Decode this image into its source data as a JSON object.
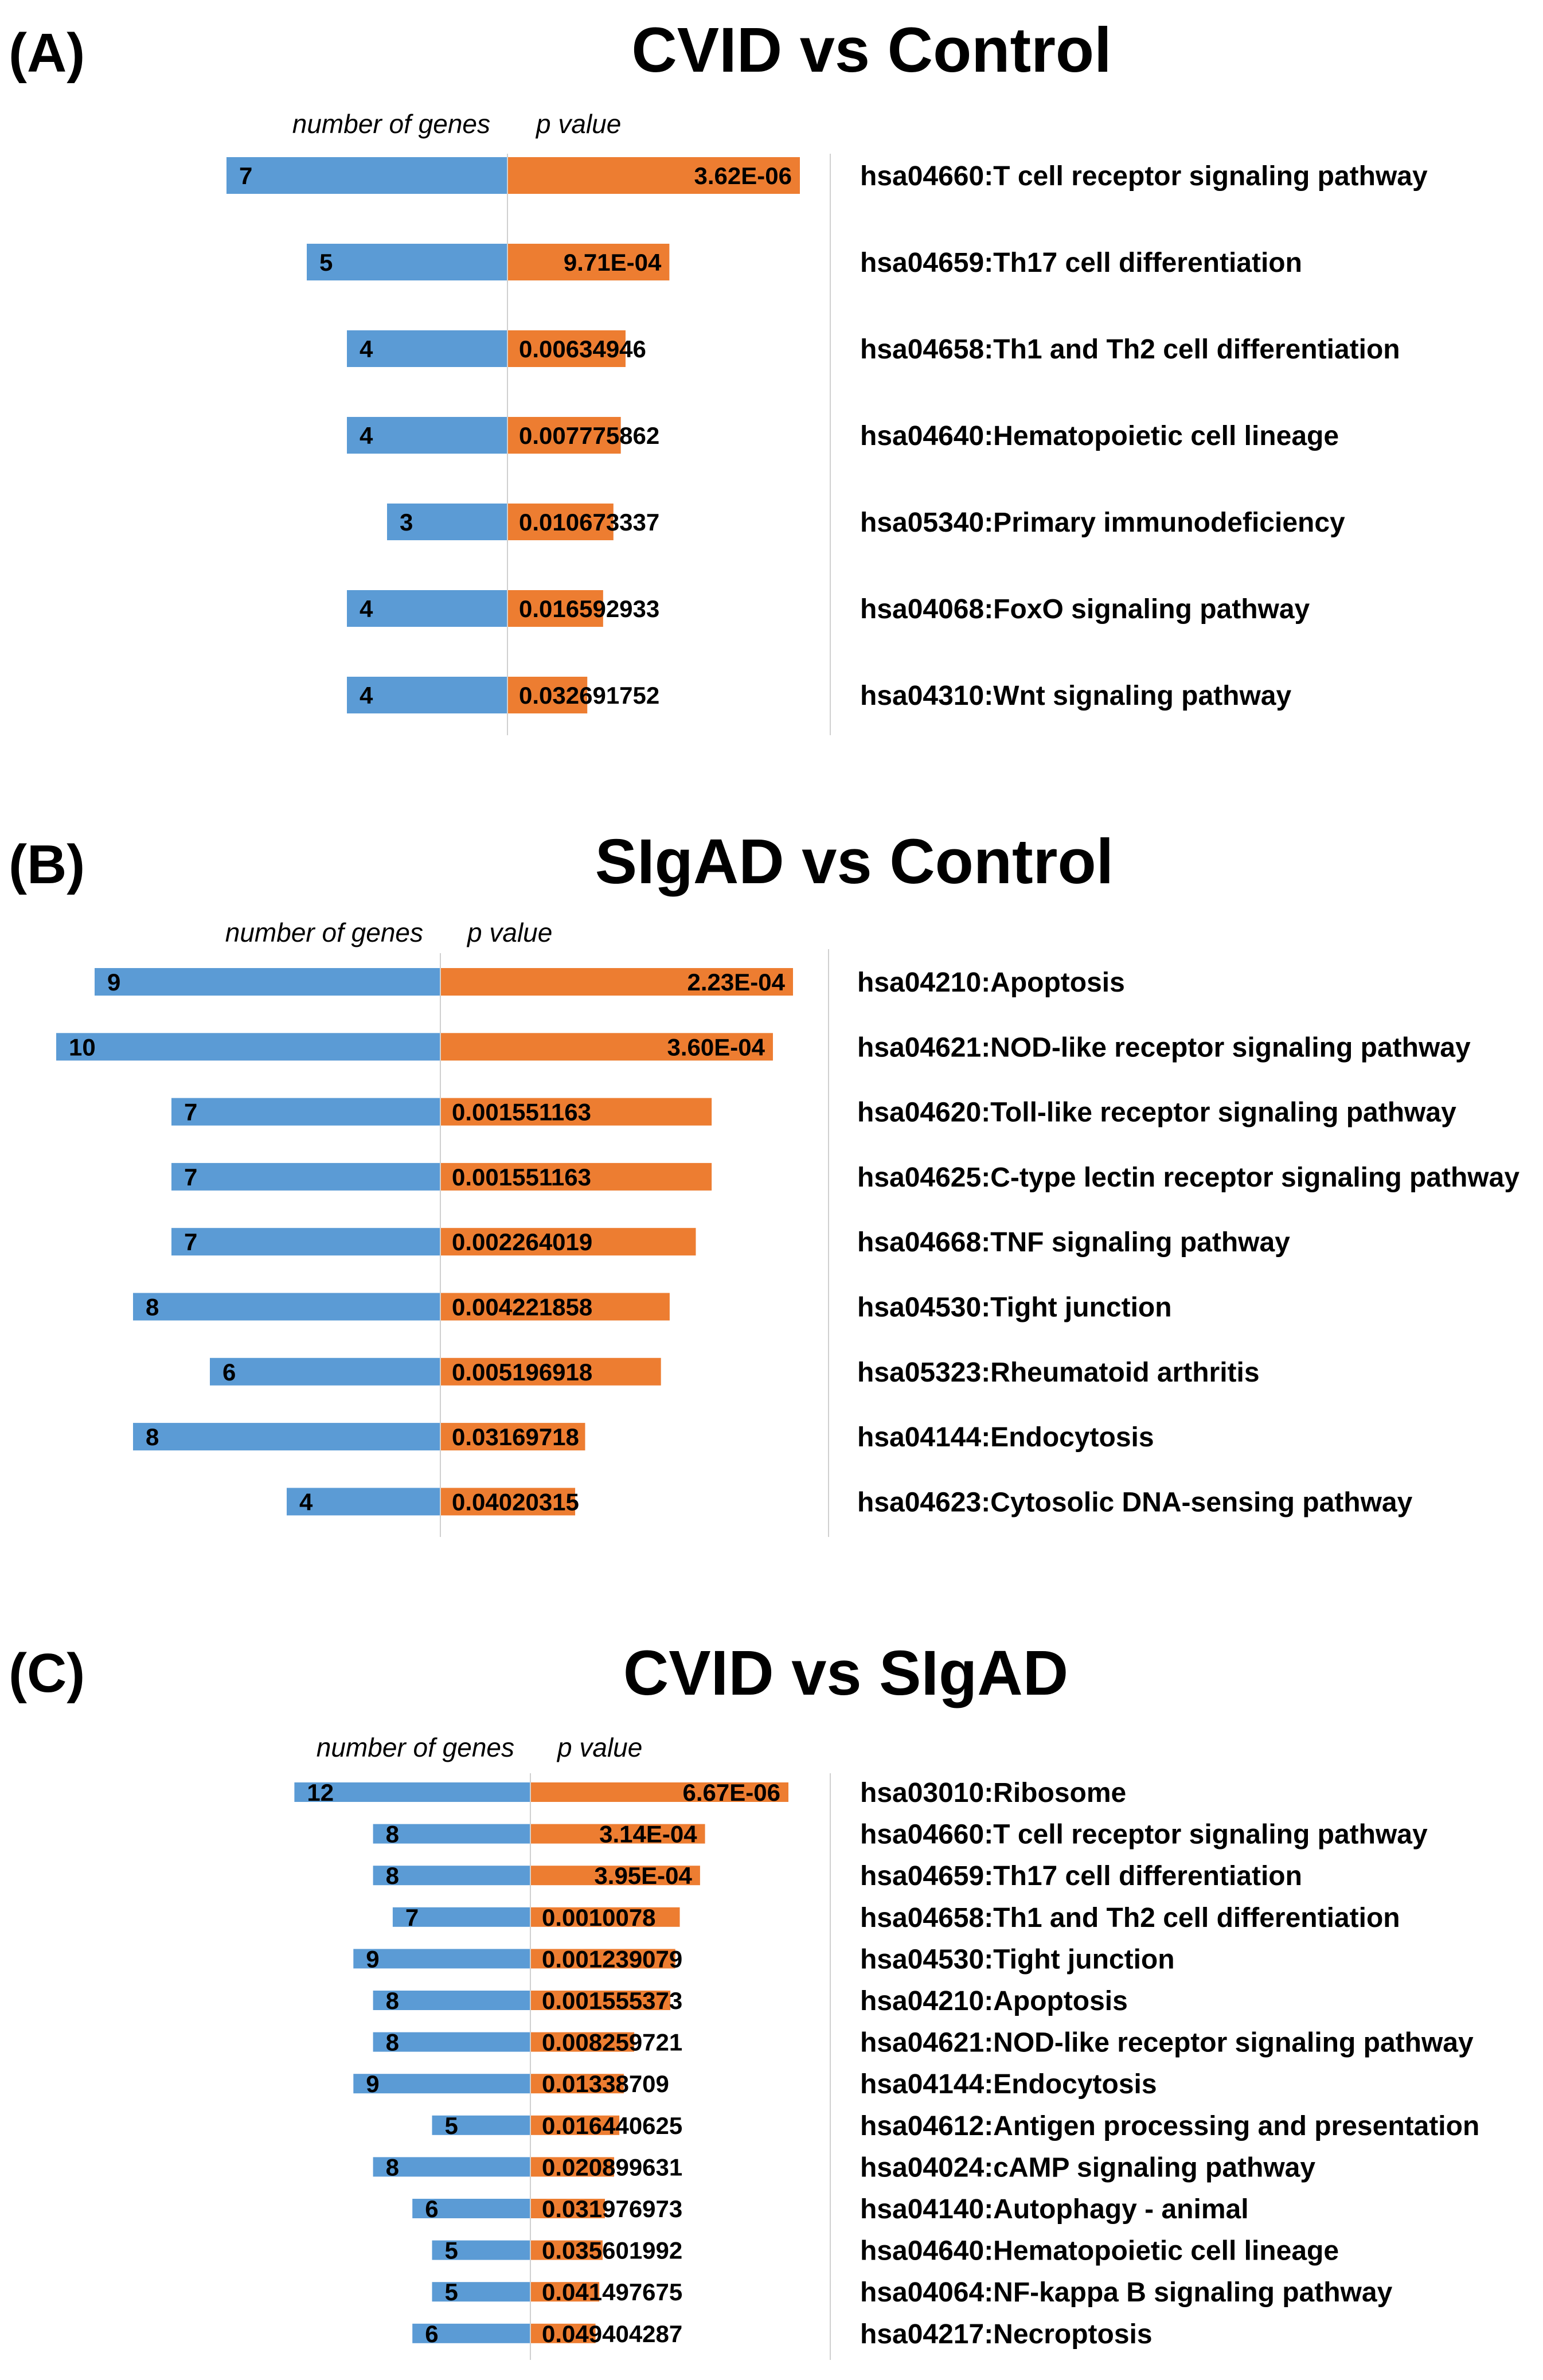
{
  "chart_data": [
    {
      "type": "bar",
      "panel_label": "(A)",
      "title": "CVID vs Control",
      "left_header": "number of genes",
      "right_header": "p value",
      "colors": {
        "genes": "#5b9bd5",
        "pvalue": "#ed7d31"
      },
      "rows": [
        {
          "pathway": "hsa04660:T cell receptor signaling pathway",
          "genes": 7,
          "p_label": "3.62E-06",
          "p": 3.62e-06
        },
        {
          "pathway": "hsa04659:Th17 cell differentiation",
          "genes": 5,
          "p_label": "9.71E-04",
          "p": 0.000971
        },
        {
          "pathway": "hsa04658:Th1 and Th2 cell differentiation",
          "genes": 4,
          "p_label": "0.00634946",
          "p": 0.00634946
        },
        {
          "pathway": "hsa04640:Hematopoietic cell lineage",
          "genes": 4,
          "p_label": "0.007775862",
          "p": 0.007775862
        },
        {
          "pathway": "hsa05340:Primary immunodeficiency",
          "genes": 3,
          "p_label": "0.010673337",
          "p": 0.010673337
        },
        {
          "pathway": "hsa04068:FoxO signaling pathway",
          "genes": 4,
          "p_label": "0.016592933",
          "p": 0.016592933
        },
        {
          "pathway": "hsa04310:Wnt signaling pathway",
          "genes": 4,
          "p_label": "0.032691752",
          "p": 0.032691752
        }
      ]
    },
    {
      "type": "bar",
      "panel_label": "(B)",
      "title": "SIgAD vs Control",
      "left_header": "number of genes",
      "right_header": "p value",
      "colors": {
        "genes": "#5b9bd5",
        "pvalue": "#ed7d31"
      },
      "rows": [
        {
          "pathway": "hsa04210:Apoptosis",
          "genes": 9,
          "p_label": "2.23E-04",
          "p": 0.000223
        },
        {
          "pathway": "hsa04621:NOD-like receptor signaling pathway",
          "genes": 10,
          "p_label": "3.60E-04",
          "p": 0.00036
        },
        {
          "pathway": "hsa04620:Toll-like receptor signaling pathway",
          "genes": 7,
          "p_label": "0.001551163",
          "p": 0.001551163
        },
        {
          "pathway": "hsa04625:C-type lectin receptor signaling pathway",
          "genes": 7,
          "p_label": "0.001551163",
          "p": 0.001551163
        },
        {
          "pathway": "hsa04668:TNF signaling pathway",
          "genes": 7,
          "p_label": "0.002264019",
          "p": 0.002264019
        },
        {
          "pathway": "hsa04530:Tight junction",
          "genes": 8,
          "p_label": "0.004221858",
          "p": 0.004221858
        },
        {
          "pathway": "hsa05323:Rheumatoid arthritis",
          "genes": 6,
          "p_label": "0.005196918",
          "p": 0.005196918
        },
        {
          "pathway": "hsa04144:Endocytosis",
          "genes": 8,
          "p_label": "0.03169718",
          "p": 0.03169718
        },
        {
          "pathway": "hsa04623:Cytosolic DNA-sensing pathway",
          "genes": 4,
          "p_label": "0.04020315",
          "p": 0.04020315
        }
      ]
    },
    {
      "type": "bar",
      "panel_label": "(C)",
      "title": "CVID vs SIgAD",
      "left_header": "number of genes",
      "right_header": "p value",
      "colors": {
        "genes": "#5b9bd5",
        "pvalue": "#ed7d31"
      },
      "rows": [
        {
          "pathway": "hsa03010:Ribosome",
          "genes": 12,
          "p_label": "6.67E-06",
          "p": 6.67e-06
        },
        {
          "pathway": "hsa04660:T cell receptor signaling pathway",
          "genes": 8,
          "p_label": "3.14E-04",
          "p": 0.000314
        },
        {
          "pathway": "hsa04659:Th17 cell differentiation",
          "genes": 8,
          "p_label": "3.95E-04",
          "p": 0.000395
        },
        {
          "pathway": "hsa04658:Th1 and Th2 cell differentiation",
          "genes": 7,
          "p_label": "0.0010078",
          "p": 0.0010078
        },
        {
          "pathway": "hsa04530:Tight junction",
          "genes": 9,
          "p_label": "0.001239079",
          "p": 0.001239079
        },
        {
          "pathway": "hsa04210:Apoptosis",
          "genes": 8,
          "p_label": "0.001555373",
          "p": 0.001555373
        },
        {
          "pathway": "hsa04621:NOD-like receptor signaling pathway",
          "genes": 8,
          "p_label": "0.008259721",
          "p": 0.008259721
        },
        {
          "pathway": "hsa04144:Endocytosis",
          "genes": 9,
          "p_label": "0.01338709",
          "p": 0.01338709
        },
        {
          "pathway": "hsa04612:Antigen processing and presentation",
          "genes": 5,
          "p_label": "0.016440625",
          "p": 0.016440625
        },
        {
          "pathway": "hsa04024:cAMP signaling pathway",
          "genes": 8,
          "p_label": "0.020899631",
          "p": 0.020899631
        },
        {
          "pathway": "hsa04140:Autophagy - animal",
          "genes": 6,
          "p_label": "0.031976973",
          "p": 0.031976973
        },
        {
          "pathway": "hsa04640:Hematopoietic cell lineage",
          "genes": 5,
          "p_label": "0.035601992",
          "p": 0.035601992
        },
        {
          "pathway": "hsa04064:NF-kappa B signaling pathway",
          "genes": 5,
          "p_label": "0.041497675",
          "p": 0.041497675
        },
        {
          "pathway": "hsa04217:Necroptosis",
          "genes": 6,
          "p_label": "0.049404287",
          "p": 0.049404287
        }
      ]
    }
  ]
}
